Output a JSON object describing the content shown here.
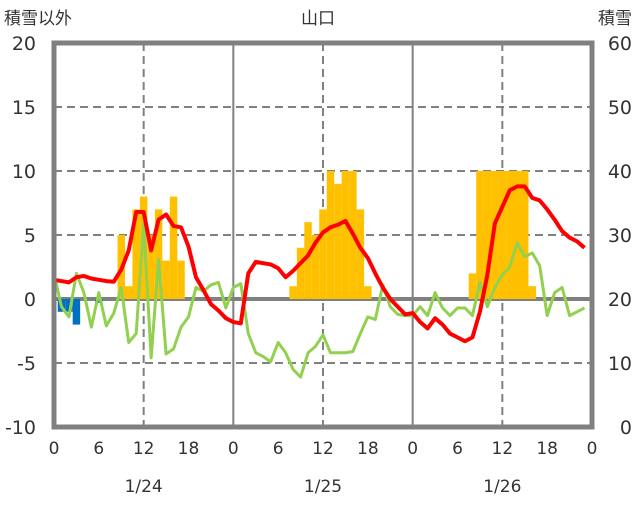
{
  "chart_data": {
    "type": "bar+line",
    "title": "山口",
    "ylabel_left": "積雪以外",
    "ylabel_right": "積雪",
    "ylim_left": [
      -10,
      20
    ],
    "ylim_right": [
      0,
      60
    ],
    "yticks_left": [
      "20",
      "15",
      "10",
      "5",
      "0",
      "-5",
      "-10"
    ],
    "yticks_right": [
      "60",
      "50",
      "40",
      "30",
      "20",
      "10",
      "0"
    ],
    "xticks": [
      "0",
      "6",
      "12",
      "18",
      "0",
      "6",
      "12",
      "18",
      "0",
      "6",
      "12",
      "18",
      "0"
    ],
    "day_labels": [
      "1/24",
      "1/25",
      "1/26"
    ],
    "hours_total": 72,
    "grid": true,
    "colors": {
      "bar_pos": "#FFC000",
      "bar_neg": "#0070C0",
      "red": "#FF0000",
      "green": "#92D050",
      "snow": "#7030A0",
      "frame": "#808080"
    },
    "bars": [
      {
        "h": 1,
        "v": -1
      },
      {
        "h": 2,
        "v": -1
      },
      {
        "h": 3,
        "v": -2
      },
      {
        "h": 6,
        "v": -0.3
      },
      {
        "h": 9,
        "v": 5
      },
      {
        "h": 10,
        "v": 1
      },
      {
        "h": 11,
        "v": 7
      },
      {
        "h": 12,
        "v": 8
      },
      {
        "h": 13,
        "v": 5
      },
      {
        "h": 14,
        "v": 7
      },
      {
        "h": 15,
        "v": 3
      },
      {
        "h": 16,
        "v": 8
      },
      {
        "h": 17,
        "v": 3
      },
      {
        "h": 32,
        "v": 1
      },
      {
        "h": 33,
        "v": 4
      },
      {
        "h": 34,
        "v": 6
      },
      {
        "h": 35,
        "v": 5
      },
      {
        "h": 36,
        "v": 7
      },
      {
        "h": 37,
        "v": 10
      },
      {
        "h": 38,
        "v": 9
      },
      {
        "h": 39,
        "v": 10
      },
      {
        "h": 40,
        "v": 10
      },
      {
        "h": 41,
        "v": 7
      },
      {
        "h": 42,
        "v": 1
      },
      {
        "h": 56,
        "v": 2
      },
      {
        "h": 57,
        "v": 10
      },
      {
        "h": 58,
        "v": 10
      },
      {
        "h": 59,
        "v": 10
      },
      {
        "h": 60,
        "v": 10
      },
      {
        "h": 61,
        "v": 10
      },
      {
        "h": 62,
        "v": 10
      },
      {
        "h": 63,
        "v": 10
      },
      {
        "h": 64,
        "v": 1
      }
    ],
    "series": [
      {
        "name": "red",
        "values": [
          1.5,
          1.4,
          1.3,
          1.7,
          1.8,
          1.6,
          1.5,
          1.4,
          1.35,
          2.3,
          3.8,
          6.8,
          6.8,
          3.8,
          6.2,
          6.6,
          5.7,
          5.6,
          4.1,
          1.7,
          0.7,
          -0.4,
          -0.9,
          -1.5,
          -1.8,
          -1.9,
          2.0,
          2.9,
          2.8,
          2.7,
          2.4,
          1.7,
          2.2,
          2.8,
          3.4,
          4.4,
          5.2,
          5.6,
          5.8,
          6.1,
          5.1,
          4.0,
          3.2,
          2.0,
          0.9,
          0,
          -0.6,
          -1.2,
          -1.1,
          -1.8,
          -2.3,
          -1.5,
          -2.0,
          -2.7,
          -3.0,
          -3.3,
          -3.0,
          -1.0,
          1.9,
          5.9,
          7.2,
          8.5,
          8.8,
          8.8,
          7.9,
          7.7,
          7.0,
          6.2,
          5.3,
          4.8,
          4.5,
          4.0
        ]
      },
      {
        "name": "green",
        "values": [
          2.0,
          -0.6,
          -1.4,
          2.0,
          0.5,
          -2.2,
          0.5,
          -2.1,
          -1.1,
          0.9,
          -3.4,
          -2.7,
          5.9,
          -4.6,
          3.1,
          -4.3,
          -3.9,
          -2.2,
          -1.4,
          0.9,
          0.6,
          1.1,
          1.3,
          -0.7,
          0.9,
          1.2,
          -2.7,
          -4.2,
          -4.5,
          -4.9,
          -3.4,
          -4.2,
          -5.5,
          -6.1,
          -4.2,
          -3.7,
          -2.8,
          -4.2,
          -4.2,
          -4.2,
          -4.1,
          -2.7,
          -1.4,
          -1.6,
          1.1,
          -0.6,
          -1.2,
          -1.3,
          -1.3,
          -0.6,
          -1.3,
          0.5,
          -0.7,
          -1.3,
          -0.7,
          -0.7,
          -1.3,
          1.3,
          -0.6,
          0.9,
          1.9,
          2.5,
          4.4,
          3.3,
          3.6,
          2.6,
          -1.3,
          0.5,
          0.9,
          -1.3,
          -1.0,
          -0.7
        ]
      },
      {
        "name": "積雪",
        "axis": "right",
        "values": [
          0,
          0
        ]
      }
    ]
  }
}
